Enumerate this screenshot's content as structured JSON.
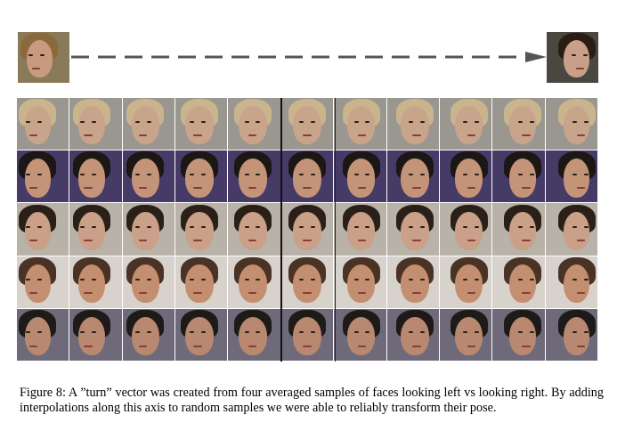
{
  "figure": {
    "caption": "Figure 8: A ”turn” vector was created from four averaged samples of faces looking left vs looking right. By adding interpolations along this axis to random samples we were able to reliably transform their pose."
  },
  "reference_images": [
    {
      "name": "face-looking-left",
      "pose": "left"
    },
    {
      "name": "face-looking-right",
      "pose": "right"
    }
  ],
  "grid": {
    "rows": [
      {
        "subject": "blond man",
        "bg": "#9a9690",
        "hair": "#c9b48e",
        "skin": "#c8a48a"
      },
      {
        "subject": "dark-haired woman",
        "bg": "#463a66",
        "hair": "#1c1614",
        "skin": "#c49478"
      },
      {
        "subject": "young man",
        "bg": "#b8b2a8",
        "hair": "#2a2018",
        "skin": "#caa088"
      },
      {
        "subject": "blurred man",
        "bg": "#d8d2cc",
        "hair": "#4a3224",
        "skin": "#c48e70"
      },
      {
        "subject": "man with stubble",
        "bg": "#6e6a7a",
        "hair": "#1e1a18",
        "skin": "#b88870"
      }
    ],
    "columns": 11
  }
}
